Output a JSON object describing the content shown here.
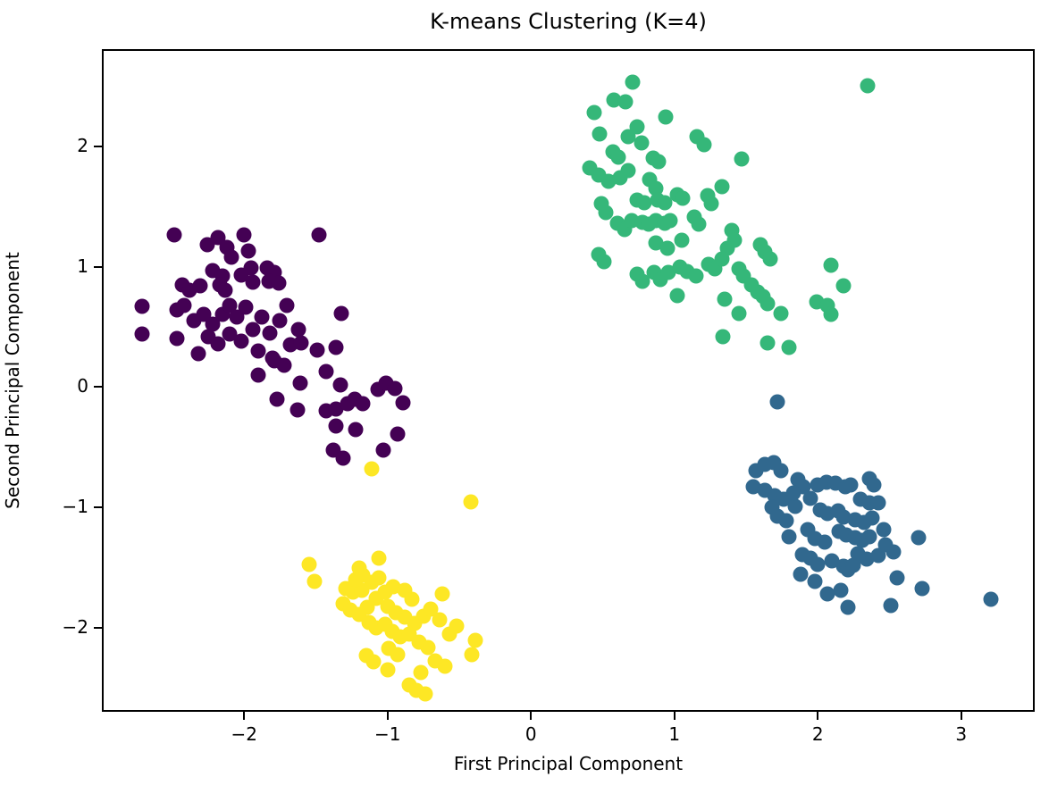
{
  "figure": {
    "title": "K-means Clustering (K=4)",
    "x_axis_label": "First Principal Component",
    "y_axis_label": "Second Principal Component"
  },
  "chart_data": {
    "type": "scatter",
    "title": "K-means Clustering (K=4)",
    "xlabel": "First Principal Component",
    "ylabel": "Second Principal Component",
    "xlim": [
      -2.98,
      3.5
    ],
    "ylim": [
      -2.68,
      2.79
    ],
    "x_ticks": [
      -2,
      -1,
      0,
      1,
      2,
      3
    ],
    "y_ticks": [
      2,
      1,
      0,
      -1,
      -2
    ],
    "x_tick_labels": [
      "−2",
      "−1",
      "0",
      "1",
      "2",
      "3"
    ],
    "y_tick_labels": [
      "2",
      "1",
      "0",
      "−1",
      "−2"
    ],
    "grid": false,
    "legend_position": "none",
    "marker_diameter_px": 17,
    "background_color": "#ffffff",
    "spine_color": "#000000",
    "series": [
      {
        "name": "cluster-purple",
        "color": "#440154",
        "points": [
          [
            -2.49,
            1.26
          ],
          [
            -2.26,
            1.18
          ],
          [
            -2.18,
            1.24
          ],
          [
            -2.12,
            1.16
          ],
          [
            -2.0,
            1.26
          ],
          [
            -1.97,
            1.13
          ],
          [
            -1.48,
            1.26
          ],
          [
            -2.09,
            1.08
          ],
          [
            -2.22,
            0.97
          ],
          [
            -2.15,
            0.92
          ],
          [
            -2.02,
            0.93
          ],
          [
            -1.95,
            0.99
          ],
          [
            -1.84,
            0.99
          ],
          [
            -1.79,
            0.95
          ],
          [
            -2.43,
            0.85
          ],
          [
            -2.38,
            0.8
          ],
          [
            -2.31,
            0.84
          ],
          [
            -2.17,
            0.85
          ],
          [
            -2.13,
            0.8
          ],
          [
            -1.94,
            0.87
          ],
          [
            -1.83,
            0.88
          ],
          [
            -1.76,
            0.86
          ],
          [
            -2.71,
            0.67
          ],
          [
            -2.71,
            0.44
          ],
          [
            -2.47,
            0.64
          ],
          [
            -2.42,
            0.68
          ],
          [
            -2.35,
            0.55
          ],
          [
            -2.28,
            0.6
          ],
          [
            -2.22,
            0.52
          ],
          [
            -2.15,
            0.6
          ],
          [
            -2.1,
            0.68
          ],
          [
            -2.05,
            0.58
          ],
          [
            -1.99,
            0.66
          ],
          [
            -2.25,
            0.42
          ],
          [
            -2.18,
            0.36
          ],
          [
            -2.1,
            0.44
          ],
          [
            -2.02,
            0.38
          ],
          [
            -1.94,
            0.48
          ],
          [
            -1.88,
            0.58
          ],
          [
            -1.82,
            0.45
          ],
          [
            -1.75,
            0.55
          ],
          [
            -1.7,
            0.68
          ],
          [
            -2.32,
            0.28
          ],
          [
            -1.9,
            0.3
          ],
          [
            -1.79,
            0.22
          ],
          [
            -1.68,
            0.35
          ],
          [
            -1.62,
            0.48
          ],
          [
            -2.47,
            0.4
          ],
          [
            -1.6,
            0.37
          ],
          [
            -1.49,
            0.31
          ],
          [
            -1.36,
            0.33
          ],
          [
            -1.8,
            0.24
          ],
          [
            -1.72,
            0.18
          ],
          [
            -1.61,
            0.03
          ],
          [
            -1.43,
            0.13
          ],
          [
            -1.33,
            0.02
          ],
          [
            -1.77,
            -0.1
          ],
          [
            -1.63,
            -0.19
          ],
          [
            -1.43,
            -0.2
          ],
          [
            -1.36,
            -0.18
          ],
          [
            -1.28,
            -0.14
          ],
          [
            -1.23,
            -0.1
          ],
          [
            -1.17,
            -0.14
          ],
          [
            -1.07,
            -0.02
          ],
          [
            -1.01,
            0.03
          ],
          [
            -0.95,
            -0.01
          ],
          [
            -0.89,
            -0.13
          ],
          [
            -1.36,
            -0.32
          ],
          [
            -1.22,
            -0.35
          ],
          [
            -0.93,
            -0.39
          ],
          [
            -1.03,
            -0.52
          ],
          [
            -1.38,
            -0.52
          ],
          [
            -1.31,
            -0.59
          ],
          [
            -1.9,
            0.1
          ],
          [
            -1.32,
            0.61
          ]
        ]
      },
      {
        "name": "cluster-green",
        "color": "#35b779",
        "points": [
          [
            2.35,
            2.5
          ],
          [
            0.71,
            2.53
          ],
          [
            0.58,
            2.38
          ],
          [
            0.66,
            2.37
          ],
          [
            0.44,
            2.28
          ],
          [
            0.94,
            2.24
          ],
          [
            0.48,
            2.1
          ],
          [
            0.68,
            2.08
          ],
          [
            0.74,
            2.16
          ],
          [
            0.77,
            2.03
          ],
          [
            1.16,
            2.08
          ],
          [
            1.21,
            2.01
          ],
          [
            0.57,
            1.95
          ],
          [
            0.61,
            1.91
          ],
          [
            0.85,
            1.9
          ],
          [
            0.89,
            1.87
          ],
          [
            1.47,
            1.89
          ],
          [
            0.41,
            1.82
          ],
          [
            0.47,
            1.76
          ],
          [
            0.54,
            1.71
          ],
          [
            0.62,
            1.74
          ],
          [
            0.68,
            1.8
          ],
          [
            1.33,
            1.66
          ],
          [
            0.83,
            1.72
          ],
          [
            0.87,
            1.65
          ],
          [
            1.23,
            1.59
          ],
          [
            1.26,
            1.52
          ],
          [
            0.49,
            1.52
          ],
          [
            0.52,
            1.45
          ],
          [
            0.74,
            1.55
          ],
          [
            0.79,
            1.53
          ],
          [
            0.88,
            1.55
          ],
          [
            0.93,
            1.53
          ],
          [
            1.02,
            1.6
          ],
          [
            1.06,
            1.57
          ],
          [
            0.6,
            1.36
          ],
          [
            0.65,
            1.31
          ],
          [
            0.7,
            1.38
          ],
          [
            0.78,
            1.37
          ],
          [
            0.82,
            1.35
          ],
          [
            0.87,
            1.38
          ],
          [
            0.93,
            1.36
          ],
          [
            0.97,
            1.38
          ],
          [
            1.14,
            1.41
          ],
          [
            1.17,
            1.35
          ],
          [
            1.4,
            1.3
          ],
          [
            1.42,
            1.22
          ],
          [
            1.37,
            1.15
          ],
          [
            1.6,
            1.18
          ],
          [
            1.63,
            1.12
          ],
          [
            1.67,
            1.06
          ],
          [
            0.47,
            1.1
          ],
          [
            0.51,
            1.04
          ],
          [
            0.74,
            0.94
          ],
          [
            0.78,
            0.88
          ],
          [
            0.86,
            0.95
          ],
          [
            0.9,
            0.89
          ],
          [
            0.96,
            0.95
          ],
          [
            1.04,
            1.0
          ],
          [
            1.09,
            0.96
          ],
          [
            1.15,
            0.92
          ],
          [
            1.24,
            1.02
          ],
          [
            1.28,
            0.98
          ],
          [
            1.33,
            1.06
          ],
          [
            1.45,
            0.98
          ],
          [
            1.48,
            0.92
          ],
          [
            1.54,
            0.85
          ],
          [
            1.58,
            0.79
          ],
          [
            1.02,
            0.76
          ],
          [
            1.35,
            0.73
          ],
          [
            1.45,
            0.61
          ],
          [
            1.62,
            0.75
          ],
          [
            1.65,
            0.69
          ],
          [
            1.74,
            0.61
          ],
          [
            2.09,
            1.01
          ],
          [
            2.18,
            0.84
          ],
          [
            1.99,
            0.71
          ],
          [
            2.07,
            0.68
          ],
          [
            2.09,
            0.6
          ],
          [
            1.34,
            0.42
          ],
          [
            1.65,
            0.37
          ],
          [
            1.8,
            0.33
          ],
          [
            0.87,
            1.2
          ],
          [
            0.95,
            1.15
          ],
          [
            1.05,
            1.22
          ]
        ]
      },
      {
        "name": "cluster-blue",
        "color": "#31688e",
        "points": [
          [
            1.72,
            -0.12
          ],
          [
            1.57,
            -0.69
          ],
          [
            1.63,
            -0.64
          ],
          [
            1.69,
            -0.63
          ],
          [
            1.74,
            -0.69
          ],
          [
            1.55,
            -0.83
          ],
          [
            1.63,
            -0.86
          ],
          [
            1.7,
            -0.9
          ],
          [
            1.76,
            -0.93
          ],
          [
            1.86,
            -0.77
          ],
          [
            1.9,
            -0.83
          ],
          [
            2.0,
            -0.81
          ],
          [
            2.06,
            -0.79
          ],
          [
            2.12,
            -0.8
          ],
          [
            2.19,
            -0.83
          ],
          [
            2.23,
            -0.81
          ],
          [
            2.36,
            -0.76
          ],
          [
            2.39,
            -0.81
          ],
          [
            2.3,
            -0.93
          ],
          [
            2.36,
            -0.96
          ],
          [
            2.42,
            -0.96
          ],
          [
            1.68,
            -1.0
          ],
          [
            1.72,
            -1.07
          ],
          [
            1.78,
            -1.11
          ],
          [
            1.84,
            -0.99
          ],
          [
            1.8,
            -1.24
          ],
          [
            2.02,
            -1.02
          ],
          [
            2.07,
            -1.05
          ],
          [
            2.14,
            -1.03
          ],
          [
            2.18,
            -1.08
          ],
          [
            2.26,
            -1.1
          ],
          [
            2.32,
            -1.12
          ],
          [
            2.38,
            -1.09
          ],
          [
            1.93,
            -1.18
          ],
          [
            1.98,
            -1.26
          ],
          [
            2.05,
            -1.29
          ],
          [
            2.15,
            -1.2
          ],
          [
            2.2,
            -1.23
          ],
          [
            2.26,
            -1.25
          ],
          [
            2.31,
            -1.27
          ],
          [
            2.36,
            -1.24
          ],
          [
            2.7,
            -1.25
          ],
          [
            1.95,
            -1.42
          ],
          [
            2.0,
            -1.47
          ],
          [
            2.1,
            -1.44
          ],
          [
            2.18,
            -1.49
          ],
          [
            2.28,
            -1.38
          ],
          [
            2.34,
            -1.43
          ],
          [
            2.42,
            -1.4
          ],
          [
            2.53,
            -1.37
          ],
          [
            2.47,
            -1.31
          ],
          [
            1.89,
            -1.39
          ],
          [
            1.88,
            -1.55
          ],
          [
            1.98,
            -1.61
          ],
          [
            2.21,
            -1.52
          ],
          [
            2.25,
            -1.48
          ],
          [
            2.55,
            -1.58
          ],
          [
            2.73,
            -1.67
          ],
          [
            2.07,
            -1.72
          ],
          [
            2.16,
            -1.69
          ],
          [
            2.21,
            -1.83
          ],
          [
            2.51,
            -1.81
          ],
          [
            3.21,
            -1.76
          ],
          [
            1.83,
            -0.88
          ],
          [
            1.95,
            -0.92
          ],
          [
            2.46,
            -1.18
          ]
        ]
      },
      {
        "name": "cluster-yellow",
        "color": "#fde725",
        "points": [
          [
            -1.11,
            -0.68
          ],
          [
            -0.42,
            -0.95
          ],
          [
            -1.55,
            -1.47
          ],
          [
            -1.51,
            -1.61
          ],
          [
            -1.06,
            -1.42
          ],
          [
            -1.2,
            -1.5
          ],
          [
            -1.17,
            -1.56
          ],
          [
            -1.29,
            -1.67
          ],
          [
            -1.24,
            -1.7
          ],
          [
            -1.18,
            -1.69
          ],
          [
            -1.11,
            -1.62
          ],
          [
            -1.06,
            -1.58
          ],
          [
            -1.31,
            -1.8
          ],
          [
            -1.26,
            -1.85
          ],
          [
            -1.2,
            -1.89
          ],
          [
            -1.14,
            -1.83
          ],
          [
            -1.08,
            -1.75
          ],
          [
            -1.02,
            -1.7
          ],
          [
            -0.96,
            -1.66
          ],
          [
            -0.88,
            -1.69
          ],
          [
            -0.83,
            -1.76
          ],
          [
            -0.62,
            -1.72
          ],
          [
            -1.0,
            -1.82
          ],
          [
            -0.94,
            -1.87
          ],
          [
            -0.88,
            -1.91
          ],
          [
            -0.81,
            -1.96
          ],
          [
            -0.75,
            -1.9
          ],
          [
            -0.7,
            -1.84
          ],
          [
            -0.64,
            -1.93
          ],
          [
            -1.13,
            -1.95
          ],
          [
            -1.08,
            -2.0
          ],
          [
            -1.02,
            -1.97
          ],
          [
            -0.97,
            -2.03
          ],
          [
            -0.91,
            -2.07
          ],
          [
            -0.85,
            -2.05
          ],
          [
            -1.15,
            -2.23
          ],
          [
            -1.1,
            -2.28
          ],
          [
            -0.78,
            -2.12
          ],
          [
            -0.72,
            -2.16
          ],
          [
            -0.57,
            -2.05
          ],
          [
            -0.39,
            -2.1
          ],
          [
            -0.41,
            -2.22
          ],
          [
            -0.67,
            -2.27
          ],
          [
            -0.6,
            -2.32
          ],
          [
            -1.0,
            -2.35
          ],
          [
            -0.85,
            -2.47
          ],
          [
            -0.8,
            -2.52
          ],
          [
            -0.77,
            -2.37
          ],
          [
            -0.74,
            -2.55
          ],
          [
            -0.93,
            -2.22
          ],
          [
            -0.99,
            -2.17
          ],
          [
            -1.22,
            -1.6
          ],
          [
            -0.52,
            -1.98
          ]
        ]
      }
    ]
  }
}
